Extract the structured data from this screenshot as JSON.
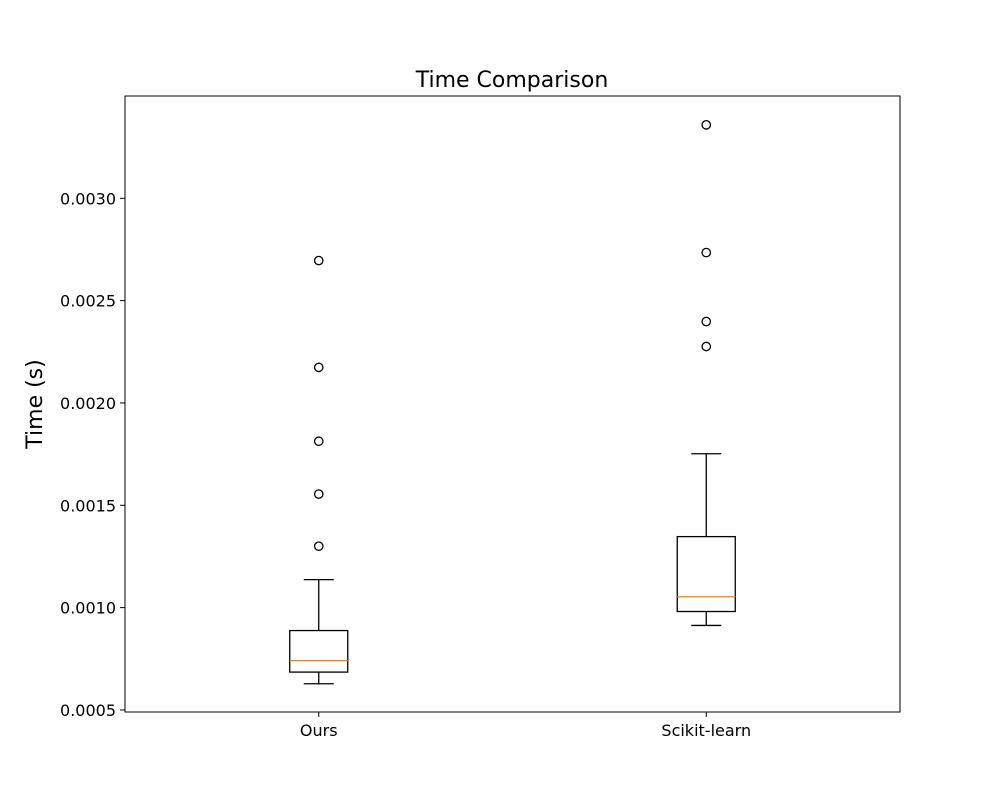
{
  "chart_data": {
    "type": "boxplot",
    "title": "Time Comparison",
    "xlabel": "",
    "ylabel": "Time (s)",
    "ylim": [
      0.00049,
      0.0035
    ],
    "yticks": [
      0.0005,
      0.001,
      0.0015,
      0.002,
      0.0025,
      0.003
    ],
    "ytick_labels": [
      "0.0005",
      "0.0010",
      "0.0015",
      "0.0020",
      "0.0025",
      "0.0030"
    ],
    "grid": false,
    "categories": [
      "Ours",
      "Scikit-learn"
    ],
    "boxes": [
      {
        "category": "Ours",
        "whisker_low": 0.000628,
        "q1": 0.000685,
        "median": 0.000741,
        "q3": 0.000888,
        "whisker_high": 0.001137,
        "outliers": [
          0.0013,
          0.001555,
          0.001813,
          0.002174,
          0.002696
        ]
      },
      {
        "category": "Scikit-learn",
        "whisker_low": 0.000913,
        "q1": 0.000981,
        "median": 0.001053,
        "q3": 0.001347,
        "whisker_high": 0.001752,
        "outliers": [
          0.002276,
          0.002398,
          0.002735,
          0.003359
        ]
      }
    ],
    "colors": {
      "box": "#000000",
      "median": "#ff7f0e",
      "outlier": "#000000"
    }
  }
}
